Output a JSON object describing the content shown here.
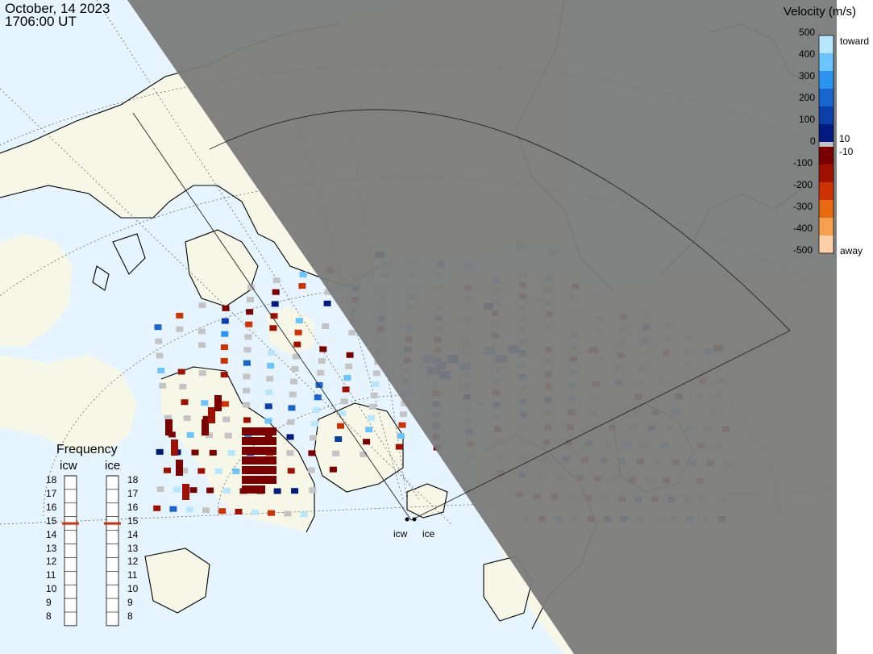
{
  "header": {
    "date": "October, 14 2023",
    "time": "1706:00 UT"
  },
  "velocity_scale": {
    "title": "Velocity (m/s)",
    "ticks": [
      "500",
      "400",
      "300",
      "200",
      "100",
      "0",
      "-100",
      "-200",
      "-300",
      "-400",
      "-500"
    ],
    "toward_label": "toward",
    "away_label": "away",
    "split_high": "10",
    "split_low": "-10",
    "toward_colors": [
      "#b8e6ff",
      "#6cc4ff",
      "#2b93f0",
      "#1766cf",
      "#0a3ea8",
      "#001a80"
    ],
    "away_colors": [
      "#7a0000",
      "#a01000",
      "#cc3300",
      "#e86a10",
      "#f5a050",
      "#ffd0a8"
    ],
    "gray_color": "#c4c4c4"
  },
  "frequency": {
    "title": "Frequency",
    "radars": [
      {
        "name": "icw",
        "selected_mhz": 15
      },
      {
        "name": "ice",
        "selected_mhz": 15
      }
    ],
    "levels": [
      "18",
      "17",
      "16",
      "15",
      "14",
      "13",
      "12",
      "11",
      "10",
      "9",
      "8"
    ]
  },
  "radar_sites": [
    "icw",
    "ice"
  ],
  "map": {
    "land_color": "#f7f7e8",
    "ocean_color": "#e6f4ff",
    "night_shade_color": "#7a7a7a",
    "coastline_color": "#000000",
    "grid_color": "#555555"
  }
}
